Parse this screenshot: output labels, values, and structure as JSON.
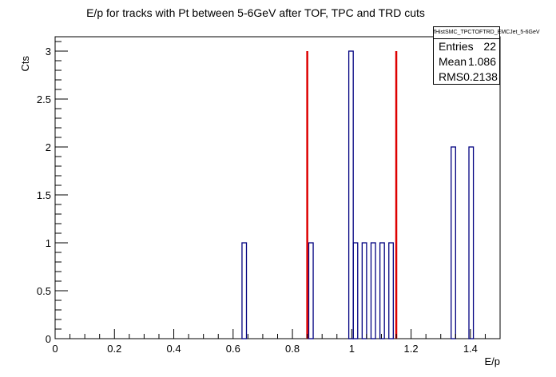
{
  "chart_data": {
    "type": "bar",
    "title": "E/p for tracks with Pt between 5-6GeV after TOF, TPC and TRD cuts",
    "xlabel": "E/p",
    "ylabel": "Cts",
    "xlim": [
      0,
      1.5
    ],
    "ylim": [
      0,
      3.15
    ],
    "bin_width": 0.015,
    "x_ticks": [
      "0",
      "0.2",
      "0.4",
      "0.6",
      "0.8",
      "1",
      "1.2",
      "1.4"
    ],
    "y_ticks": [
      "0",
      "0.5",
      "1",
      "1.5",
      "2",
      "2.5",
      "3"
    ],
    "bins": [
      {
        "x": 0.6375,
        "count": 1
      },
      {
        "x": 0.8625,
        "count": 1
      },
      {
        "x": 0.9975,
        "count": 3
      },
      {
        "x": 1.0125,
        "count": 1
      },
      {
        "x": 1.0425,
        "count": 1
      },
      {
        "x": 1.0725,
        "count": 1
      },
      {
        "x": 1.1025,
        "count": 1
      },
      {
        "x": 1.1325,
        "count": 1
      },
      {
        "x": 1.3425,
        "count": 2
      },
      {
        "x": 1.4025,
        "count": 2
      }
    ],
    "cut_lines": [
      {
        "x": 0.85,
        "height": 3,
        "color": "#dd0000"
      },
      {
        "x": 1.15,
        "height": 3,
        "color": "#dd0000"
      }
    ],
    "bar_color": "#000080",
    "stats": {
      "name": "fHistSMC_TPCTOFTRD_EMCJet_5-6GeV",
      "rows": [
        {
          "label": "Entries",
          "value": "22"
        },
        {
          "label": "Mean",
          "value": "1.086"
        },
        {
          "label": "RMS",
          "value": "0.2138"
        }
      ]
    }
  }
}
